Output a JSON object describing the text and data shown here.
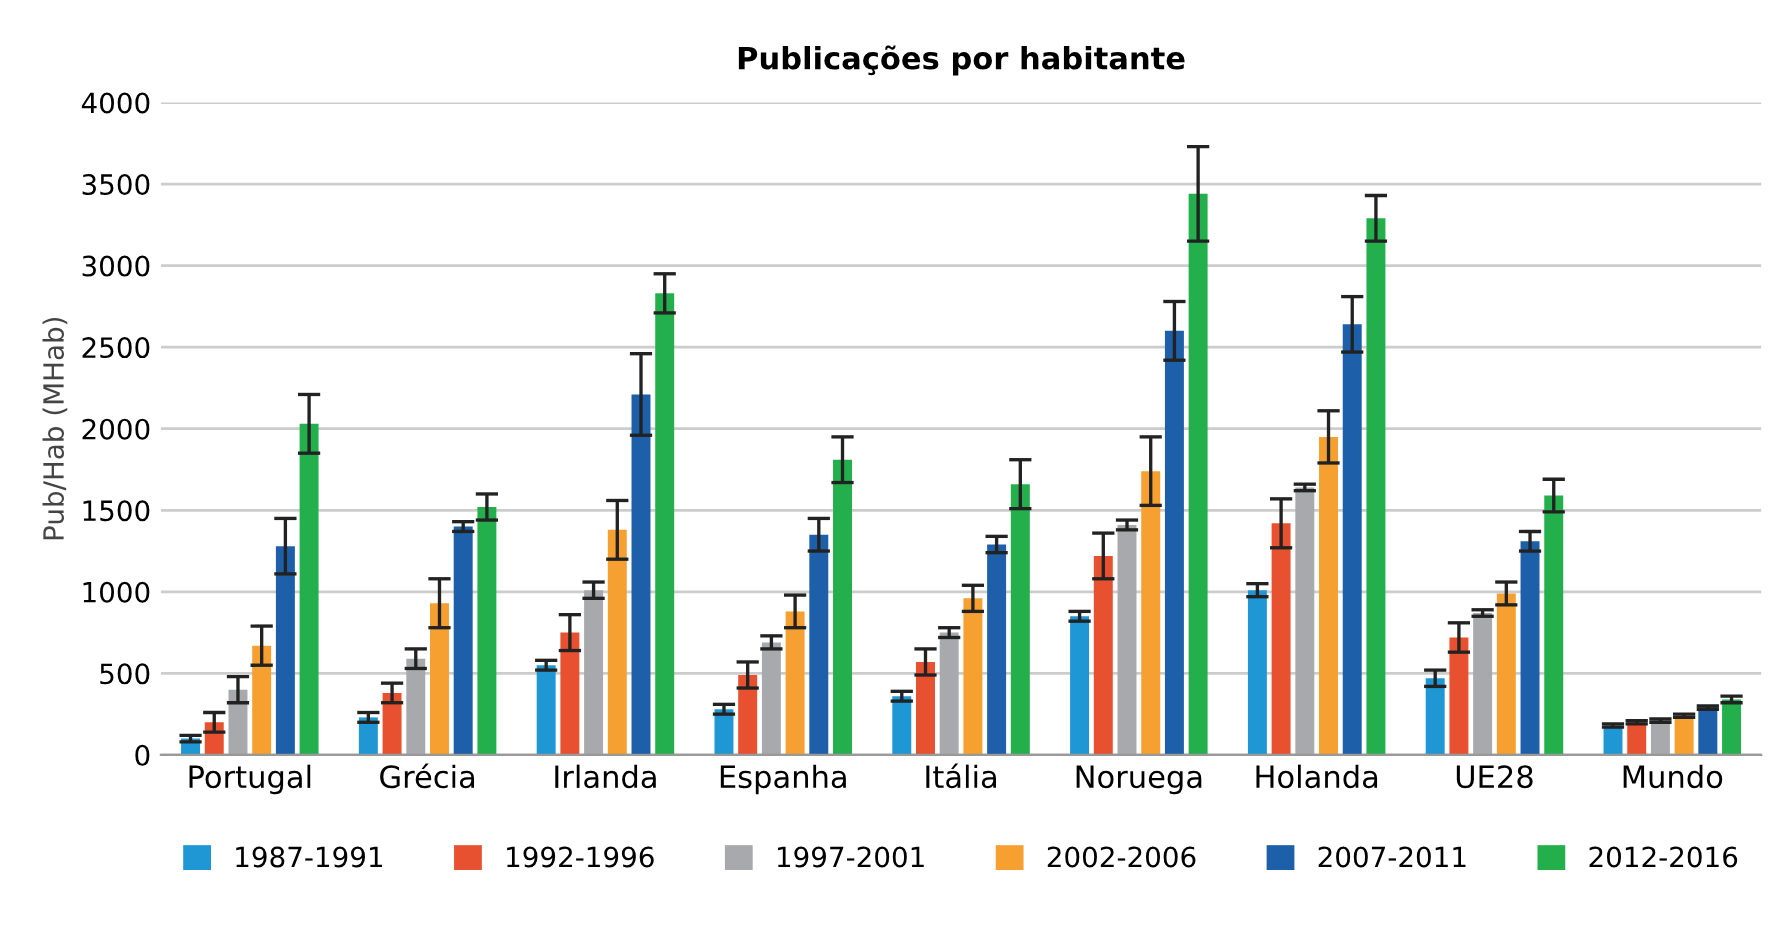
{
  "chart_data": {
    "type": "bar",
    "title": "Publicações por habitante",
    "ylabel": "Pub/Hab (MHab)",
    "categories": [
      "Portugal",
      "Grécia",
      "Irlanda",
      "Espanha",
      "Itália",
      "Noruega",
      "Holanda",
      "UE28",
      "Mundo"
    ],
    "series": [
      {
        "name": "1987-1991",
        "color": "#1f97d4",
        "values": [
          100,
          230,
          550,
          280,
          360,
          850,
          1010,
          470,
          180
        ],
        "errors": [
          20,
          30,
          30,
          30,
          30,
          30,
          40,
          50,
          10
        ]
      },
      {
        "name": "1992-1996",
        "color": "#e8512f",
        "values": [
          200,
          380,
          750,
          490,
          570,
          1220,
          1420,
          720,
          200
        ],
        "errors": [
          60,
          60,
          110,
          80,
          80,
          140,
          150,
          90,
          10
        ]
      },
      {
        "name": "1997-2001",
        "color": "#a8a9ad",
        "values": [
          400,
          590,
          1010,
          690,
          750,
          1410,
          1640,
          870,
          210
        ],
        "errors": [
          80,
          60,
          50,
          40,
          30,
          30,
          20,
          20,
          10
        ]
      },
      {
        "name": "2002-2006",
        "color": "#f5a031",
        "values": [
          670,
          930,
          1380,
          880,
          960,
          1740,
          1950,
          990,
          240
        ],
        "errors": [
          120,
          150,
          180,
          100,
          80,
          210,
          160,
          70,
          10
        ]
      },
      {
        "name": "2007-2011",
        "color": "#1d5fa8",
        "values": [
          1280,
          1400,
          2210,
          1350,
          1290,
          2600,
          2640,
          1310,
          290
        ],
        "errors": [
          170,
          30,
          250,
          100,
          50,
          180,
          170,
          60,
          10
        ]
      },
      {
        "name": "2012-2016",
        "color": "#23b04c",
        "values": [
          2030,
          1520,
          2830,
          1810,
          1660,
          3440,
          3290,
          1590,
          340
        ],
        "errors": [
          180,
          80,
          120,
          140,
          150,
          290,
          140,
          100,
          20
        ]
      }
    ],
    "ylim": [
      0,
      4000
    ],
    "yticks": [
      0,
      500,
      1000,
      1500,
      2000,
      2500,
      3000,
      3500,
      4000
    ],
    "grid": "y",
    "legend": "bottom"
  }
}
